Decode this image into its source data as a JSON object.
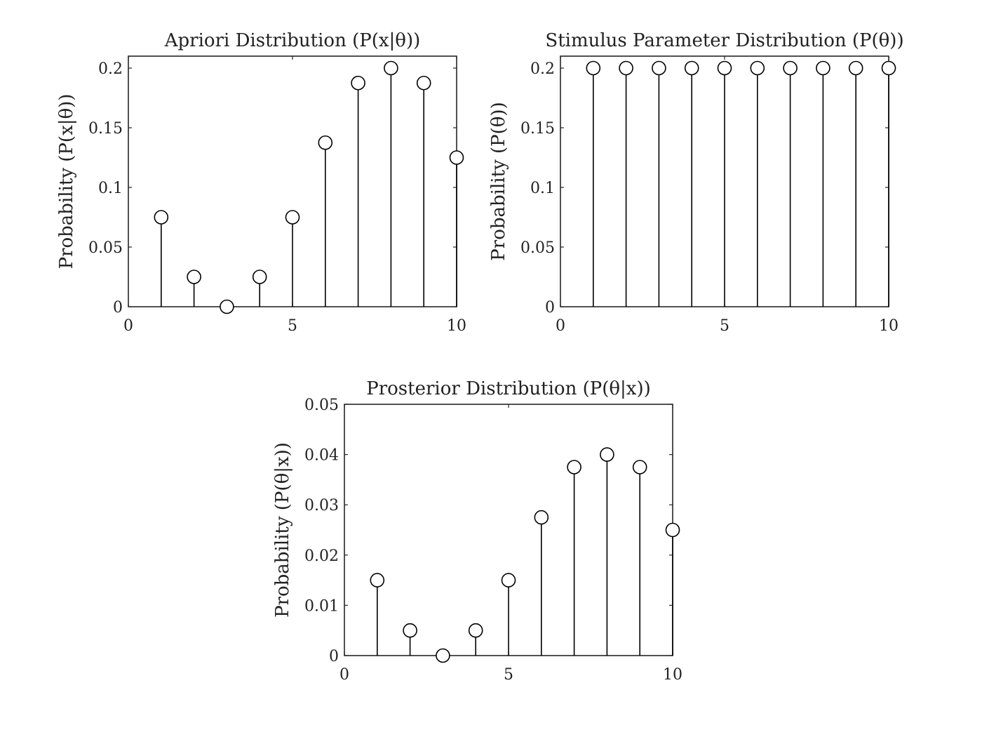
{
  "chart_data": [
    {
      "type": "stem",
      "title": "Apriori Distribution (P(x|θ))",
      "xlabel": "",
      "ylabel": "Probability (P(x|θ))",
      "x": [
        1,
        2,
        3,
        4,
        5,
        6,
        7,
        8,
        9,
        10
      ],
      "values": [
        0.075,
        0.025,
        0.0,
        0.025,
        0.075,
        0.1375,
        0.1875,
        0.2,
        0.1875,
        0.125
      ],
      "xlim": [
        0,
        10
      ],
      "ylim": [
        0,
        0.21
      ],
      "xticks": [
        0,
        5,
        10
      ],
      "yticks": [
        0,
        0.05,
        0.1,
        0.15,
        0.2
      ],
      "xtick_labels": [
        "0",
        "5",
        "10"
      ],
      "ytick_labels": [
        "0",
        "0.05",
        "0.1",
        "0.15",
        "0.2"
      ],
      "grid": false,
      "marker": "open-circle",
      "color": "#000000"
    },
    {
      "type": "stem",
      "title": "Stimulus Parameter Distribution (P(θ))",
      "xlabel": "",
      "ylabel": "Probability (P(θ))",
      "x": [
        1,
        2,
        3,
        4,
        5,
        6,
        7,
        8,
        9,
        10
      ],
      "values": [
        0.2,
        0.2,
        0.2,
        0.2,
        0.2,
        0.2,
        0.2,
        0.2,
        0.2,
        0.2
      ],
      "xlim": [
        0,
        10
      ],
      "ylim": [
        0,
        0.21
      ],
      "xticks": [
        0,
        5,
        10
      ],
      "yticks": [
        0,
        0.05,
        0.1,
        0.15,
        0.2
      ],
      "xtick_labels": [
        "0",
        "5",
        "10"
      ],
      "ytick_labels": [
        "0",
        "0.05",
        "0.1",
        "0.15",
        "0.2"
      ],
      "grid": false,
      "marker": "open-circle",
      "color": "#000000"
    },
    {
      "type": "stem",
      "title": "Prosterior Distribution (P(θ|x))",
      "xlabel": "",
      "ylabel": "Probability (P(θ|x))",
      "x": [
        1,
        2,
        3,
        4,
        5,
        6,
        7,
        8,
        9,
        10
      ],
      "values": [
        0.015,
        0.005,
        0.0,
        0.005,
        0.015,
        0.0275,
        0.0375,
        0.04,
        0.0375,
        0.025
      ],
      "xlim": [
        0,
        10
      ],
      "ylim": [
        0,
        0.05
      ],
      "xticks": [
        0,
        5,
        10
      ],
      "yticks": [
        0,
        0.01,
        0.02,
        0.03,
        0.04,
        0.05
      ],
      "xtick_labels": [
        "0",
        "5",
        "10"
      ],
      "ytick_labels": [
        "0",
        "0.01",
        "0.02",
        "0.03",
        "0.04",
        "0.05"
      ],
      "grid": false,
      "marker": "open-circle",
      "color": "#000000"
    }
  ]
}
